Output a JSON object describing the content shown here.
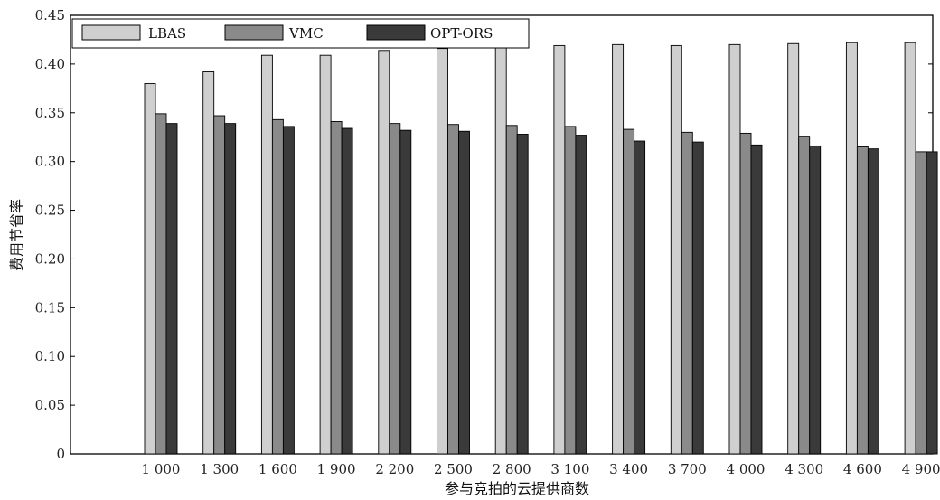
{
  "chart_data": {
    "type": "bar",
    "title": "",
    "xlabel": "参与竞拍的云提供商数",
    "ylabel": "费用节省率",
    "ylim": [
      0,
      0.45
    ],
    "yticks": [
      "0",
      "0.05",
      "0.10",
      "0.15",
      "0.20",
      "0.25",
      "0.30",
      "0.35",
      "0.40",
      "0.45"
    ],
    "categories": [
      "1 000",
      "1 300",
      "1 600",
      "1 900",
      "2 200",
      "2 500",
      "2 800",
      "3 100",
      "3 400",
      "3 700",
      "4 000",
      "4 300",
      "4 600",
      "4 900"
    ],
    "series": [
      {
        "name": "LBAS",
        "color": "#cfcfcf",
        "values": [
          0.38,
          0.392,
          0.409,
          0.409,
          0.414,
          0.416,
          0.419,
          0.419,
          0.42,
          0.419,
          0.42,
          0.421,
          0.422,
          0.422
        ]
      },
      {
        "name": "VMC",
        "color": "#8a8a8a",
        "values": [
          0.349,
          0.347,
          0.343,
          0.341,
          0.339,
          0.338,
          0.337,
          0.336,
          0.333,
          0.33,
          0.329,
          0.326,
          0.315,
          0.31
        ]
      },
      {
        "name": "OPT-ORS",
        "color": "#3a3a3a",
        "values": [
          0.339,
          0.339,
          0.336,
          0.334,
          0.332,
          0.331,
          0.328,
          0.327,
          0.321,
          0.32,
          0.317,
          0.316,
          0.313,
          0.31
        ]
      }
    ],
    "legend_position": "top-left",
    "grid": false
  }
}
